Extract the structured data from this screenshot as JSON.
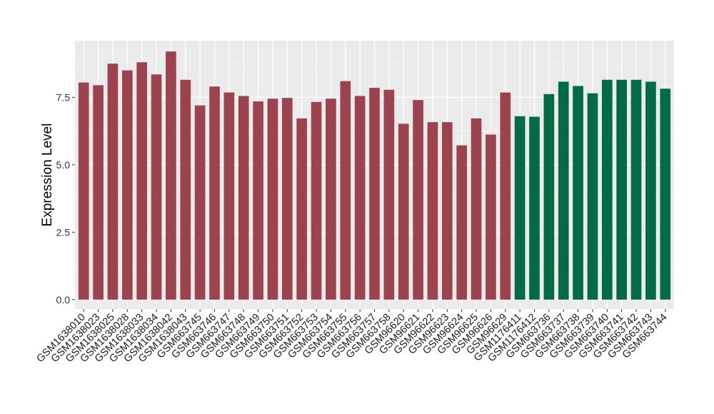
{
  "chart_data": {
    "type": "bar",
    "title": "",
    "xlabel": "",
    "ylabel": "Expression Level",
    "ylim": [
      -0.35,
      9.6
    ],
    "yticks": [
      0.0,
      2.5,
      5.0,
      7.5
    ],
    "ytick_labels": [
      "0.0",
      "2.5",
      "5.0",
      "7.5"
    ],
    "grid": true,
    "legend": "none",
    "categories": [
      "GSM1638010",
      "GSM1638023",
      "GSM1638025",
      "GSM1638028",
      "GSM1638033",
      "GSM1638034",
      "GSM1638042",
      "GSM1638043",
      "GSM663745",
      "GSM663746",
      "GSM663747",
      "GSM663748",
      "GSM663749",
      "GSM663750",
      "GSM663751",
      "GSM663752",
      "GSM663753",
      "GSM663754",
      "GSM663755",
      "GSM663756",
      "GSM663757",
      "GSM663758",
      "GSM96620",
      "GSM96621",
      "GSM96622",
      "GSM96623",
      "GSM96624",
      "GSM96625",
      "GSM96626",
      "GSM96629",
      "GSM1176411",
      "GSM1176412",
      "GSM663736",
      "GSM663737",
      "GSM663738",
      "GSM663739",
      "GSM663740",
      "GSM663741",
      "GSM663742",
      "GSM663743",
      "GSM663744"
    ],
    "values": [
      8.05,
      7.95,
      8.75,
      8.5,
      8.8,
      8.35,
      9.2,
      8.15,
      7.2,
      7.9,
      7.68,
      7.55,
      7.35,
      7.45,
      7.48,
      6.72,
      7.33,
      7.45,
      8.1,
      7.55,
      7.85,
      7.78,
      6.52,
      7.4,
      6.58,
      6.58,
      5.72,
      6.72,
      6.12,
      7.68,
      6.8,
      6.78,
      7.62,
      8.08,
      7.92,
      7.65,
      8.15,
      8.15,
      8.15,
      8.08,
      7.82
    ],
    "group_colors": [
      "#9b4450",
      "#9b4450",
      "#9b4450",
      "#9b4450",
      "#9b4450",
      "#9b4450",
      "#9b4450",
      "#9b4450",
      "#9b4450",
      "#9b4450",
      "#9b4450",
      "#9b4450",
      "#9b4450",
      "#9b4450",
      "#9b4450",
      "#9b4450",
      "#9b4450",
      "#9b4450",
      "#9b4450",
      "#9b4450",
      "#9b4450",
      "#9b4450",
      "#9b4450",
      "#9b4450",
      "#9b4450",
      "#9b4450",
      "#9b4450",
      "#9b4450",
      "#9b4450",
      "#9b4450",
      "#006b45",
      "#006b45",
      "#006b45",
      "#006b45",
      "#006b45",
      "#006b45",
      "#006b45",
      "#006b45",
      "#006b45",
      "#006b45",
      "#006b45"
    ],
    "panel_background": "#ebebeb",
    "grid_color": "#ffffff"
  }
}
